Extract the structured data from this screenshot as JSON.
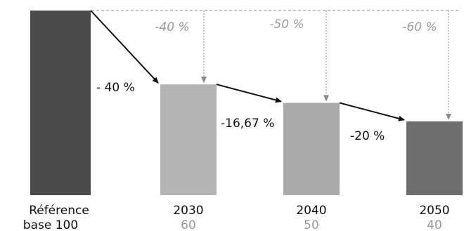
{
  "chart_data": {
    "type": "bar",
    "categories": [
      "Référence",
      "2030",
      "2040",
      "2050"
    ],
    "values": [
      100,
      60,
      50,
      40
    ],
    "category_sublabels": [
      "base 100",
      "60",
      "50",
      "40"
    ],
    "baseline_labels": [
      "-40 %",
      "-50 %",
      "-60 %"
    ],
    "step_labels": [
      "- 40 %",
      "-16,67 %",
      "-20 %"
    ],
    "colors": {
      "reference_bar": "#4a4a4a",
      "bar_2030": "#b4b4b4",
      "bar_2040": "#aaaaaa",
      "bar_2050": "#6e6e6e",
      "baseline": "#888888",
      "step_arrow": "#111111",
      "grey_text": "#9a9a9a"
    }
  }
}
